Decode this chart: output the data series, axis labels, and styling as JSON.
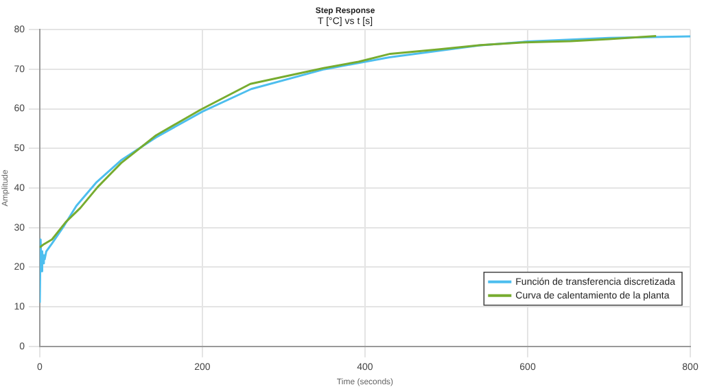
{
  "chart_data": {
    "type": "line",
    "title": "Step Response",
    "subtitle": "T [°C] vs t [s]",
    "xlabel": "Time (seconds)",
    "ylabel": "Amplitude",
    "xlim": [
      0,
      800
    ],
    "xticks": [
      0,
      200,
      400,
      600,
      800
    ],
    "ylim": [
      0,
      80
    ],
    "yticks": [
      0,
      10,
      20,
      30,
      40,
      50,
      60,
      70,
      80
    ],
    "grid": true,
    "legend": "bottom right",
    "marker": "none",
    "line_style": "solid",
    "series": [
      {
        "name": "Función de transferencia discretizada",
        "color": "#4dbeee",
        "x": [
          0,
          1,
          2,
          3,
          4,
          5,
          6,
          8,
          15,
          30,
          45,
          70,
          100,
          143,
          200,
          260,
          350,
          430,
          540,
          600,
          700,
          800
        ],
        "values": [
          11,
          27,
          19,
          24,
          21,
          23,
          22,
          24,
          26,
          30.5,
          35.5,
          41.5,
          47,
          52.8,
          59.3,
          65,
          70,
          73,
          76,
          77,
          77.9,
          78.3
        ]
      },
      {
        "name": "Curva de calentamiento de la planta",
        "color": "#77ac30",
        "x": [
          0,
          5,
          15,
          32,
          50,
          71,
          100,
          143,
          198,
          259,
          349,
          392,
          431,
          490,
          542,
          597,
          653,
          700,
          758
        ],
        "values": [
          25,
          25.8,
          27,
          31.4,
          35,
          40.2,
          46.3,
          53.3,
          59.8,
          66.3,
          70.3,
          71.9,
          73.9,
          75,
          76.1,
          76.8,
          77.1,
          77.6,
          78.4
        ]
      }
    ]
  }
}
